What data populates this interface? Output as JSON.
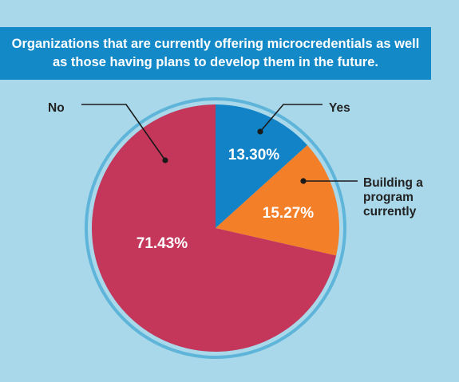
{
  "title": "Organizations that are currently offering microcredentials as well as those having plans to develop them in the future.",
  "colors": {
    "background": "#a9d8ea",
    "banner": "#1389c8",
    "ring": "#5fb5d9",
    "leader": "#1a1a1a"
  },
  "chart_data": {
    "type": "pie",
    "title": "Organizations that are currently offering microcredentials as well as those having plans to develop them in the future.",
    "slices": [
      {
        "label": "Yes",
        "value": 13.3,
        "value_label": "13.30%",
        "color": "#1283c6"
      },
      {
        "label": "Building a program currently",
        "label_lines": [
          "Building a",
          "program",
          "currently"
        ],
        "value": 15.27,
        "value_label": "15.27%",
        "color": "#f47f29"
      },
      {
        "label": "No",
        "value": 71.43,
        "value_label": "71.43%",
        "color": "#c4365a"
      }
    ],
    "legend": "none"
  }
}
